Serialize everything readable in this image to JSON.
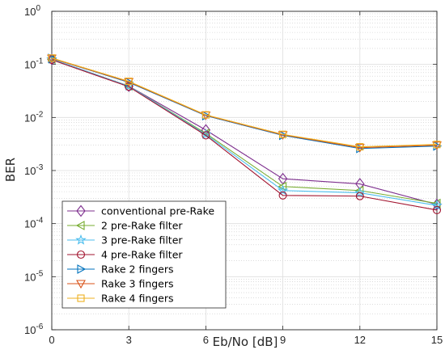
{
  "chart_data": {
    "type": "line",
    "xlabel": "Eb/No [dB]",
    "ylabel": "BER",
    "x": [
      0,
      3,
      6,
      9,
      12,
      15
    ],
    "xlim": [
      0,
      15
    ],
    "ylim": [
      1e-06,
      1
    ],
    "yscale": "log",
    "grid": true,
    "minor_grid": true,
    "legend_position": "bottom-left",
    "x_tick_labels": [
      "0",
      "3",
      "6",
      "9",
      "12",
      "15"
    ],
    "y_tick_exponents": [
      "0",
      "-1",
      "-2",
      "-3",
      "-4",
      "-5",
      "-6"
    ],
    "series": [
      {
        "name": "conventional pre-Rake",
        "color": "#7e2f8e",
        "marker": "diamond",
        "values": [
          0.125,
          0.039,
          0.0058,
          0.0007,
          0.00056,
          0.00023
        ]
      },
      {
        "name": "2 pre-Rake filter",
        "color": "#77ac30",
        "marker": "triangle-left",
        "values": [
          0.125,
          0.039,
          0.005,
          0.0005,
          0.00042,
          0.00024
        ]
      },
      {
        "name": "3 pre-Rake filter",
        "color": "#4dbeee",
        "marker": "star",
        "values": [
          0.125,
          0.039,
          0.0048,
          0.00042,
          0.00038,
          0.00022
        ]
      },
      {
        "name": "4 pre-Rake filter",
        "color": "#a2142f",
        "marker": "circle",
        "values": [
          0.122,
          0.038,
          0.0046,
          0.00034,
          0.00033,
          0.00018
        ]
      },
      {
        "name": "Rake 2 fingers",
        "color": "#0072bd",
        "marker": "triangle-right",
        "values": [
          0.13,
          0.046,
          0.0108,
          0.0046,
          0.0026,
          0.0029
        ]
      },
      {
        "name": "Rake 3 fingers",
        "color": "#d95319",
        "marker": "triangle-down",
        "values": [
          0.13,
          0.047,
          0.011,
          0.0047,
          0.0027,
          0.003
        ]
      },
      {
        "name": "Rake 4 fingers",
        "color": "#edb120",
        "marker": "square",
        "values": [
          0.132,
          0.048,
          0.0112,
          0.0048,
          0.0028,
          0.0031
        ]
      }
    ]
  }
}
